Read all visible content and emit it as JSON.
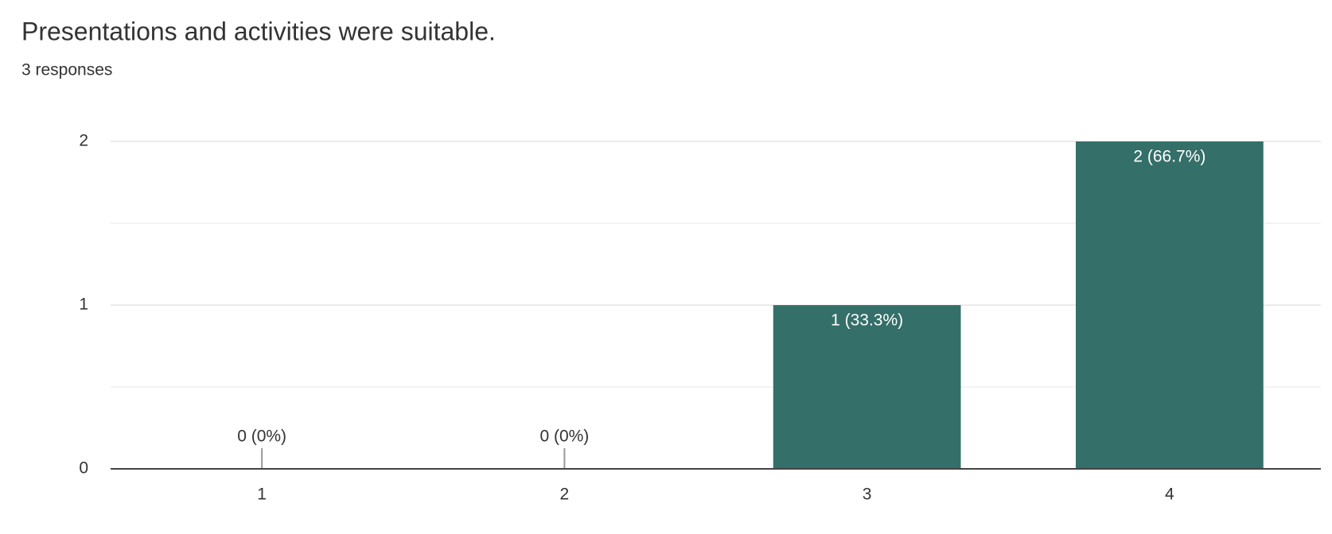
{
  "chart_data": {
    "type": "bar",
    "title": "Presentations and activities were suitable.",
    "subtitle": "3 responses",
    "categories": [
      "1",
      "2",
      "3",
      "4"
    ],
    "values": [
      0,
      0,
      1,
      2
    ],
    "value_labels": [
      "0 (0%)",
      "0 (0%)",
      "1 (33.3%)",
      "2 (66.7%)"
    ],
    "color": "#346f69",
    "ylim": [
      0,
      2
    ],
    "yticks": [
      0,
      1,
      2
    ],
    "minor_yticks": [
      0.5,
      1.5
    ],
    "grid": true
  }
}
